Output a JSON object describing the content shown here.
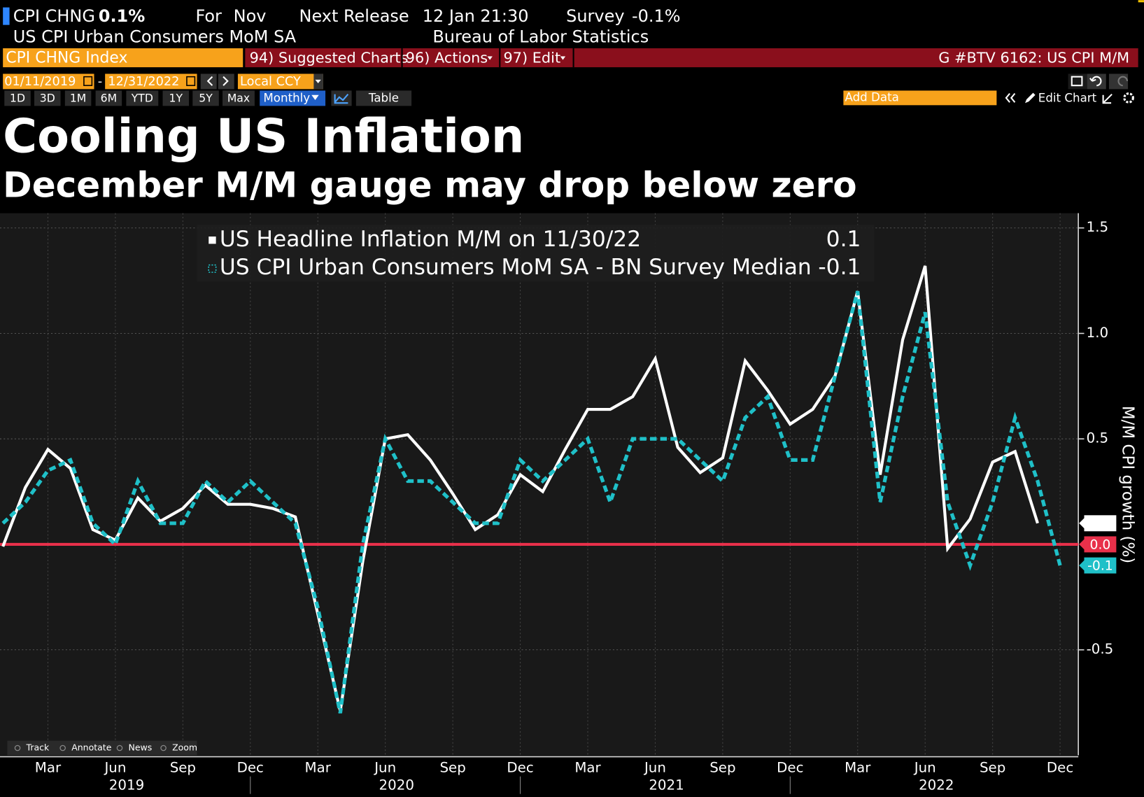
{
  "header": {
    "ticker": "CPI CHNG",
    "value": "0.1%",
    "for_label": "For",
    "for_value": "Nov",
    "release_label": "Next Release",
    "release_value": "12 Jan 21:30",
    "survey_label": "Survey",
    "survey_value": "-0.1%",
    "description": "US CPI Urban Consumers MoM SA",
    "source": "Bureau of Labor Statistics"
  },
  "toolbar": {
    "security": "CPI CHNG Index",
    "menus": [
      "94) Suggested Charts",
      "96) Actions",
      "97) Edit"
    ],
    "chart_id": "G #BTV 6162: US CPI M/M",
    "start_date": "01/11/2019",
    "date_separator": "-",
    "end_date": "12/31/2022",
    "currency": "Local CCY",
    "periods": [
      "1D",
      "3D",
      "1M",
      "6M",
      "YTD",
      "1Y",
      "5Y",
      "Max"
    ],
    "frequency": "Monthly",
    "table": "Table",
    "add_data": "Add Data",
    "edit_chart": "Edit Chart"
  },
  "chart_tools": [
    "Track",
    "Annotate",
    "News",
    "Zoom"
  ],
  "chart_data": {
    "type": "line",
    "title": "Cooling US Inflation",
    "subtitle": "December M/M gauge may drop below zero",
    "ylabel": "M/M CPI growth (%)",
    "x": [
      "2019-01",
      "2019-02",
      "2019-03",
      "2019-04",
      "2019-05",
      "2019-06",
      "2019-07",
      "2019-08",
      "2019-09",
      "2019-10",
      "2019-11",
      "2019-12",
      "2020-01",
      "2020-02",
      "2020-03",
      "2020-04",
      "2020-05",
      "2020-06",
      "2020-07",
      "2020-08",
      "2020-09",
      "2020-10",
      "2020-11",
      "2020-12",
      "2021-01",
      "2021-02",
      "2021-03",
      "2021-04",
      "2021-05",
      "2021-06",
      "2021-07",
      "2021-08",
      "2021-09",
      "2021-10",
      "2021-11",
      "2021-12",
      "2022-01",
      "2022-02",
      "2022-03",
      "2022-04",
      "2022-05",
      "2022-06",
      "2022-07",
      "2022-08",
      "2022-09",
      "2022-10",
      "2022-11",
      "2022-12"
    ],
    "xticks": [
      {
        "value": "2019-03",
        "label": "Mar"
      },
      {
        "value": "2019-06",
        "label": "Jun"
      },
      {
        "value": "2019-09",
        "label": "Sep"
      },
      {
        "value": "2019-12",
        "label": "Dec"
      },
      {
        "value": "2020-03",
        "label": "Mar"
      },
      {
        "value": "2020-06",
        "label": "Jun"
      },
      {
        "value": "2020-09",
        "label": "Sep"
      },
      {
        "value": "2020-12",
        "label": "Dec"
      },
      {
        "value": "2021-03",
        "label": "Mar"
      },
      {
        "value": "2021-06",
        "label": "Jun"
      },
      {
        "value": "2021-09",
        "label": "Sep"
      },
      {
        "value": "2021-12",
        "label": "Dec"
      },
      {
        "value": "2022-03",
        "label": "Mar"
      },
      {
        "value": "2022-06",
        "label": "Jun"
      },
      {
        "value": "2022-09",
        "label": "Sep"
      },
      {
        "value": "2022-12",
        "label": "Dec"
      }
    ],
    "xgroups": [
      "2019",
      "2020",
      "2021",
      "2022"
    ],
    "ylim": [
      -1.0,
      1.57
    ],
    "yticks": [
      -0.5,
      0.5,
      {
        "value": 1,
        "label": "1.0"
      },
      1.5
    ],
    "grid": true,
    "reference_line": {
      "value": 0,
      "label": "0.0",
      "color": "#e8304a"
    },
    "series": [
      {
        "name": "US Headline Inflation M/M on 11/30/22",
        "color": "#ffffff",
        "style": "solid",
        "values": [
          -0.01,
          0.27,
          0.45,
          0.36,
          0.07,
          0.02,
          0.22,
          0.11,
          0.17,
          0.28,
          0.19,
          0.19,
          0.17,
          0.13,
          -0.33,
          -0.79,
          -0.08,
          0.5,
          0.52,
          0.4,
          0.24,
          0.07,
          0.14,
          0.33,
          0.25,
          0.45,
          0.64,
          0.64,
          0.7,
          0.88,
          0.46,
          0.34,
          0.41,
          0.87,
          0.73,
          0.57,
          0.64,
          0.8,
          1.2,
          0.33,
          0.97,
          1.32,
          -0.02,
          0.12,
          0.39,
          0.44,
          0.1,
          null
        ]
      },
      {
        "name": "US CPI Urban Consumers MoM SA - BN Survey Median",
        "color": "#1fc0c8",
        "style": "dashed",
        "values": [
          0.1,
          0.2,
          0.35,
          0.4,
          0.1,
          0.0,
          0.3,
          0.1,
          0.1,
          0.3,
          0.2,
          0.3,
          0.2,
          0.1,
          -0.3,
          -0.8,
          0.0,
          0.5,
          0.3,
          0.3,
          0.2,
          0.1,
          0.1,
          0.4,
          0.3,
          0.4,
          0.5,
          0.2,
          0.5,
          0.5,
          0.5,
          0.4,
          0.3,
          0.6,
          0.7,
          0.4,
          0.4,
          0.8,
          1.2,
          0.2,
          0.7,
          1.1,
          0.2,
          -0.1,
          0.2,
          0.6,
          0.3,
          -0.1
        ]
      }
    ]
  }
}
